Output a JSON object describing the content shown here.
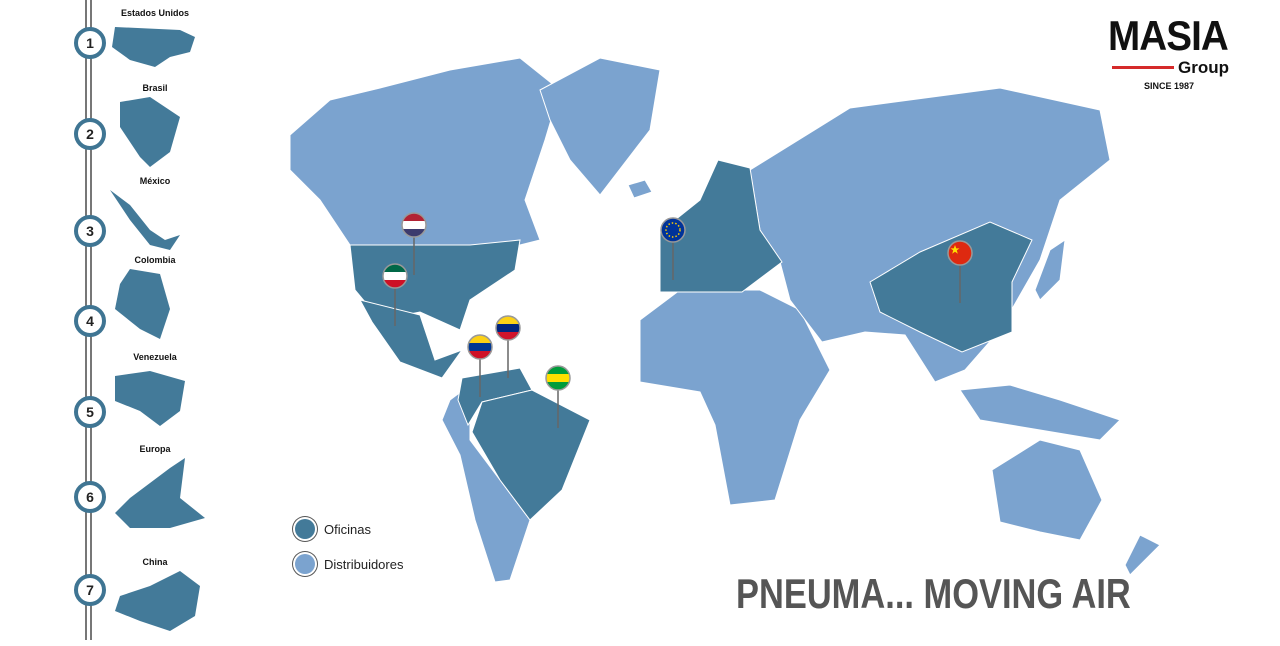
{
  "colors": {
    "office": "#437a99",
    "distributor": "#7ba3cf",
    "rail": "#3f7593",
    "accent": "#d52a2a"
  },
  "sidebar": {
    "items": [
      {
        "number": "1",
        "label": "Estados Unidos"
      },
      {
        "number": "2",
        "label": "Brasil"
      },
      {
        "number": "3",
        "label": "México"
      },
      {
        "number": "4",
        "label": "Colombia"
      },
      {
        "number": "5",
        "label": "Venezuela"
      },
      {
        "number": "6",
        "label": "Europa"
      },
      {
        "number": "7",
        "label": "China"
      }
    ]
  },
  "logo": {
    "brand": "MASIA",
    "sub": "Group",
    "since": "SINCE 1987"
  },
  "legend": {
    "offices": "Oficinas",
    "distributors": "Distribuidores"
  },
  "pins": [
    "us-flag",
    "mexico-flag",
    "venezuela-flag",
    "colombia-flag",
    "brazil-flag",
    "eu-flag",
    "china-flag"
  ],
  "slogan": "PNEUMA... MOVING AIR"
}
